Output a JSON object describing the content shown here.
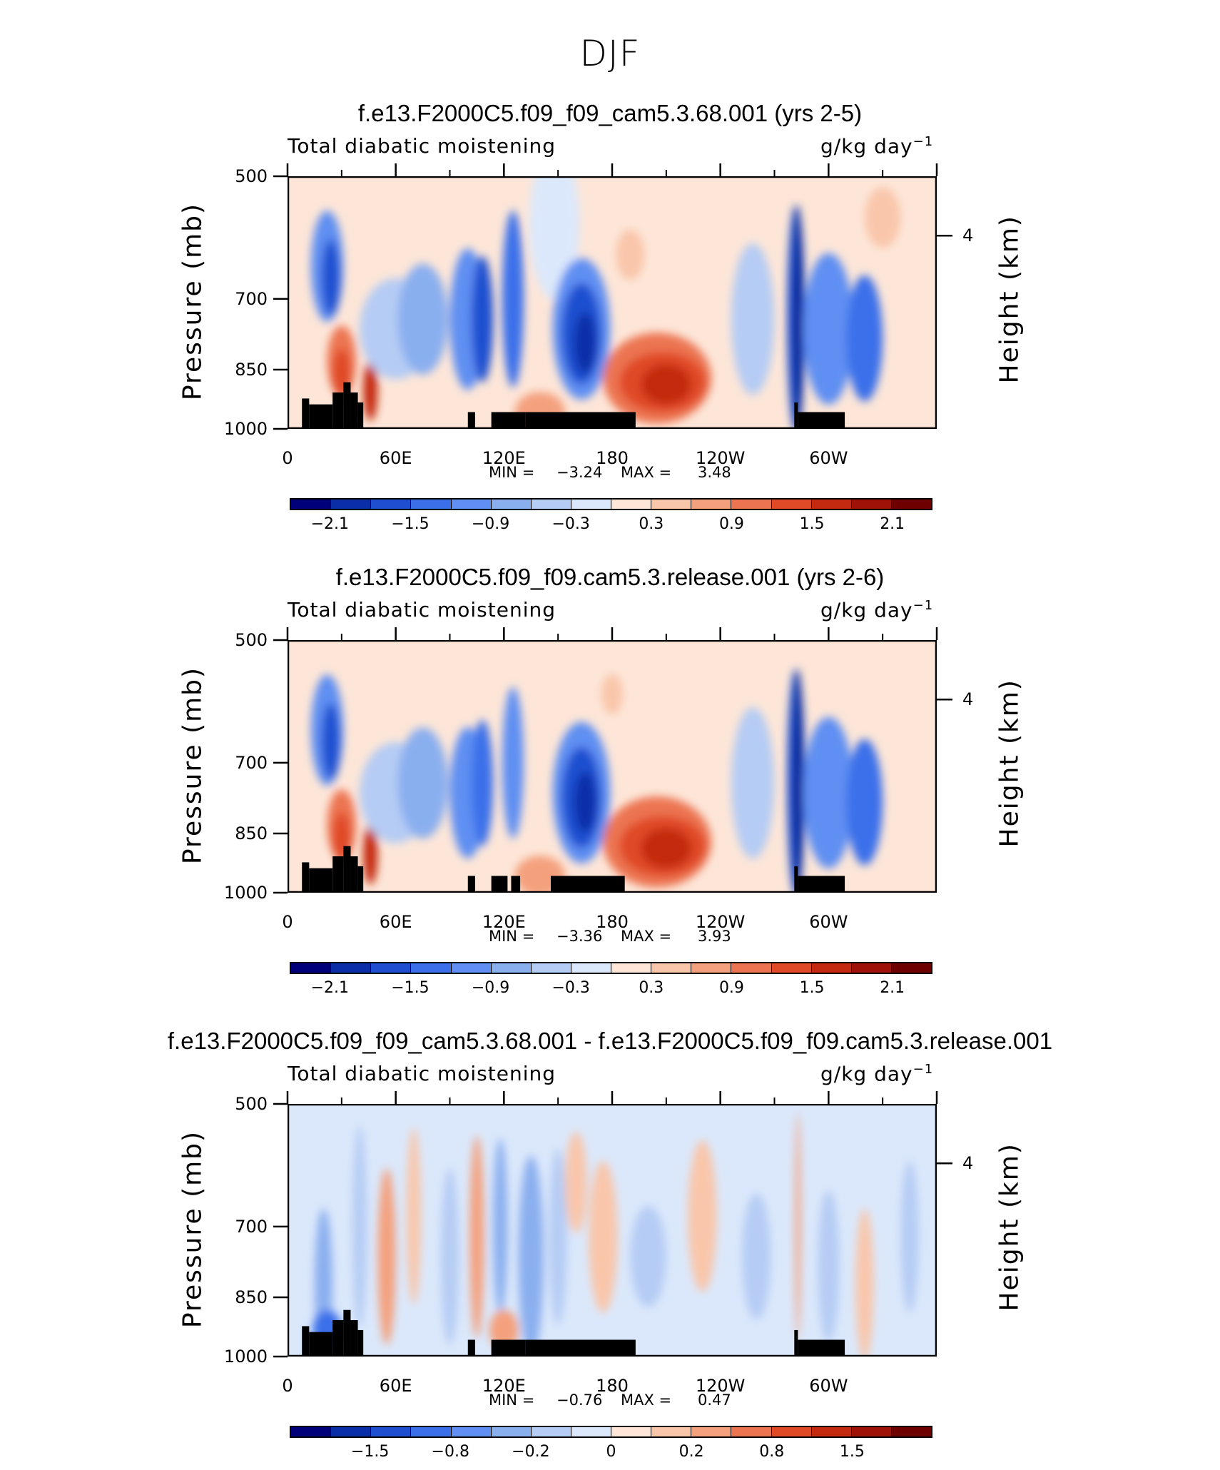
{
  "figure": {
    "title": "DJF"
  },
  "chart_data": [
    {
      "type": "heatmap",
      "title": "f.e13.F2000C5.f09_f09_cam5.3.68.001 (yrs 2-5)",
      "left_string": "Total diabatic moistening",
      "units_prefix": "g/kg day",
      "units_exponent": "−1",
      "ylabel": "Pressure (mb)",
      "ylabel_right": "Height (km)",
      "yticks": [
        "500",
        "700",
        "850",
        "1000"
      ],
      "ytick_right": "4",
      "xticks": [
        "0",
        "60E",
        "120E",
        "180",
        "120W",
        "60W"
      ],
      "ylim": [
        1000,
        500
      ],
      "min_label": "MIN =",
      "min_value": "−3.24",
      "max_label": "MAX =",
      "max_value": "3.48",
      "colorbar_labels": [
        "−2.1",
        "−1.5",
        "−0.9",
        "−0.3",
        "0.3",
        "0.9",
        "1.5",
        "2.1"
      ],
      "colorbar_colors": [
        "#00007a",
        "#0a2ea8",
        "#1f4fd0",
        "#3b6fea",
        "#5f8ff2",
        "#8aafef",
        "#b5ccf4",
        "#dbe8fb",
        "#fde6d8",
        "#f9c6aa",
        "#f4a07d",
        "#ec7451",
        "#e04a27",
        "#c42a10",
        "#9e1208",
        "#6e0000"
      ]
    },
    {
      "type": "heatmap",
      "title": "f.e13.F2000C5.f09_f09.cam5.3.release.001 (yrs 2-6)",
      "left_string": "Total diabatic moistening",
      "units_prefix": "g/kg day",
      "units_exponent": "−1",
      "ylabel": "Pressure (mb)",
      "ylabel_right": "Height (km)",
      "yticks": [
        "500",
        "700",
        "850",
        "1000"
      ],
      "ytick_right": "4",
      "xticks": [
        "0",
        "60E",
        "120E",
        "180",
        "120W",
        "60W"
      ],
      "ylim": [
        1000,
        500
      ],
      "min_label": "MIN =",
      "min_value": "−3.36",
      "max_label": "MAX =",
      "max_value": "3.93",
      "colorbar_labels": [
        "−2.1",
        "−1.5",
        "−0.9",
        "−0.3",
        "0.3",
        "0.9",
        "1.5",
        "2.1"
      ],
      "colorbar_colors": [
        "#00007a",
        "#0a2ea8",
        "#1f4fd0",
        "#3b6fea",
        "#5f8ff2",
        "#8aafef",
        "#b5ccf4",
        "#dbe8fb",
        "#fde6d8",
        "#f9c6aa",
        "#f4a07d",
        "#ec7451",
        "#e04a27",
        "#c42a10",
        "#9e1208",
        "#6e0000"
      ]
    },
    {
      "type": "heatmap",
      "title": "f.e13.F2000C5.f09_f09_cam5.3.68.001 - f.e13.F2000C5.f09_f09.cam5.3.release.001",
      "left_string": "Total diabatic moistening",
      "units_prefix": "g/kg day",
      "units_exponent": "−1",
      "ylabel": "Pressure (mb)",
      "ylabel_right": "Height (km)",
      "yticks": [
        "500",
        "700",
        "850",
        "1000"
      ],
      "ytick_right": "4",
      "xticks": [
        "0",
        "60E",
        "120E",
        "180",
        "120W",
        "60W"
      ],
      "ylim": [
        1000,
        500
      ],
      "min_label": "MIN =",
      "min_value": "−0.76",
      "max_label": "MAX =",
      "max_value": "0.47",
      "colorbar_labels": [
        "−1.5",
        "−0.8",
        "−0.2",
        "0",
        "0.2",
        "0.8",
        "1.5"
      ],
      "colorbar_colors": [
        "#00007a",
        "#0a2ea8",
        "#1f4fd0",
        "#3b6fea",
        "#5f8ff2",
        "#8aafef",
        "#b5ccf4",
        "#dbe8fb",
        "#fde6d8",
        "#f9c6aa",
        "#f4a07d",
        "#ec7451",
        "#e04a27",
        "#c42a10",
        "#9e1208",
        "#6e0000"
      ]
    }
  ]
}
